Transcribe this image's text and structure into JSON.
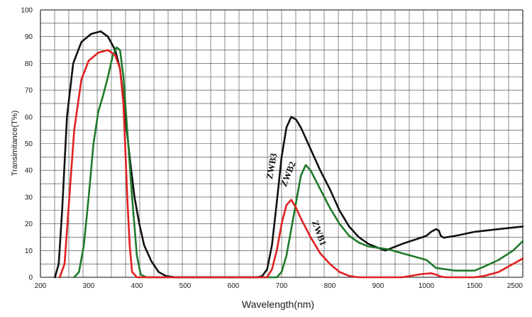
{
  "chart_data": {
    "type": "line",
    "xlabel": "Wavelength(nm)",
    "ylabel": "Transimitance(T%)",
    "ylim": [
      0,
      100
    ],
    "y_ticks": [
      "0",
      "10",
      "20",
      "30",
      "40",
      "50",
      "60",
      "70",
      "80",
      "90",
      "100"
    ],
    "x_ticks": [
      {
        "label": "200",
        "x": 200
      },
      {
        "label": "300",
        "x": 300
      },
      {
        "label": "400",
        "x": 400
      },
      {
        "label": "500",
        "x": 500
      },
      {
        "label": "600",
        "x": 600
      },
      {
        "label": "700",
        "x": 700
      },
      {
        "label": "800",
        "x": 800
      },
      {
        "label": "900",
        "x": 900
      },
      {
        "label": "1000",
        "x": 1000
      },
      {
        "label": "1500",
        "x": 1500
      },
      {
        "label": "2500",
        "x": 2500
      }
    ],
    "x_scale": "piecewise",
    "x_scale_breaks": [
      200,
      900,
      1000,
      1500,
      2500
    ],
    "grid": true,
    "series": [
      {
        "name": "ZWB3",
        "color": "#111111",
        "points": [
          [
            230,
            0
          ],
          [
            238,
            5
          ],
          [
            245,
            25
          ],
          [
            255,
            60
          ],
          [
            268,
            80
          ],
          [
            285,
            88
          ],
          [
            305,
            91
          ],
          [
            325,
            92
          ],
          [
            340,
            90
          ],
          [
            355,
            85
          ],
          [
            365,
            78
          ],
          [
            375,
            62
          ],
          [
            385,
            45
          ],
          [
            395,
            30
          ],
          [
            405,
            20
          ],
          [
            415,
            12
          ],
          [
            430,
            6
          ],
          [
            445,
            2
          ],
          [
            460,
            0.5
          ],
          [
            480,
            0
          ],
          [
            650,
            0
          ],
          [
            660,
            0.5
          ],
          [
            670,
            3
          ],
          [
            680,
            12
          ],
          [
            690,
            28
          ],
          [
            700,
            45
          ],
          [
            710,
            56
          ],
          [
            720,
            60
          ],
          [
            730,
            59
          ],
          [
            740,
            56
          ],
          [
            760,
            48
          ],
          [
            780,
            40
          ],
          [
            800,
            33
          ],
          [
            820,
            25
          ],
          [
            840,
            19
          ],
          [
            860,
            15
          ],
          [
            880,
            12.5
          ],
          [
            900,
            11
          ],
          [
            915,
            10
          ],
          [
            950,
            12.5
          ],
          [
            1000,
            15.5
          ],
          [
            1050,
            17
          ],
          [
            1100,
            18
          ],
          [
            1130,
            17.5
          ],
          [
            1150,
            15.5
          ],
          [
            1180,
            14.8
          ],
          [
            1300,
            15.5
          ],
          [
            1500,
            17
          ],
          [
            2000,
            18
          ],
          [
            2500,
            19
          ]
        ]
      },
      {
        "name": "ZWB2",
        "color": "#1f7a2a",
        "points": [
          [
            270,
            0
          ],
          [
            280,
            2
          ],
          [
            290,
            12
          ],
          [
            300,
            30
          ],
          [
            310,
            50
          ],
          [
            320,
            62
          ],
          [
            330,
            68
          ],
          [
            340,
            75
          ],
          [
            350,
            83
          ],
          [
            358,
            86
          ],
          [
            365,
            85
          ],
          [
            372,
            75
          ],
          [
            380,
            55
          ],
          [
            390,
            30
          ],
          [
            400,
            8
          ],
          [
            408,
            1
          ],
          [
            420,
            0
          ],
          [
            690,
            0
          ],
          [
            700,
            2
          ],
          [
            710,
            8
          ],
          [
            720,
            18
          ],
          [
            730,
            28
          ],
          [
            740,
            38
          ],
          [
            750,
            42
          ],
          [
            760,
            40
          ],
          [
            780,
            33
          ],
          [
            800,
            26
          ],
          [
            820,
            20
          ],
          [
            840,
            15.5
          ],
          [
            860,
            13
          ],
          [
            880,
            11.5
          ],
          [
            900,
            11
          ],
          [
            920,
            10.5
          ],
          [
            950,
            9
          ],
          [
            1000,
            6.5
          ],
          [
            1100,
            3.5
          ],
          [
            1300,
            2.5
          ],
          [
            1500,
            2.5
          ],
          [
            1700,
            4
          ],
          [
            2000,
            6.5
          ],
          [
            2300,
            10
          ],
          [
            2500,
            13.5
          ]
        ]
      },
      {
        "name": "ZWB1",
        "color": "#e02020",
        "points": [
          [
            240,
            0
          ],
          [
            250,
            5
          ],
          [
            260,
            30
          ],
          [
            270,
            55
          ],
          [
            285,
            74
          ],
          [
            300,
            81
          ],
          [
            320,
            84
          ],
          [
            340,
            85
          ],
          [
            355,
            83
          ],
          [
            365,
            78
          ],
          [
            372,
            65
          ],
          [
            380,
            30
          ],
          [
            385,
            12
          ],
          [
            390,
            2
          ],
          [
            400,
            0
          ],
          [
            670,
            0
          ],
          [
            680,
            3
          ],
          [
            690,
            10
          ],
          [
            700,
            20
          ],
          [
            710,
            27
          ],
          [
            720,
            29
          ],
          [
            730,
            26
          ],
          [
            740,
            22
          ],
          [
            760,
            15
          ],
          [
            780,
            9
          ],
          [
            800,
            5
          ],
          [
            820,
            2
          ],
          [
            840,
            0.5
          ],
          [
            860,
            0
          ],
          [
            900,
            0
          ],
          [
            950,
            0
          ],
          [
            990,
            1.2
          ],
          [
            1050,
            1.5
          ],
          [
            1100,
            1
          ],
          [
            1150,
            0.3
          ],
          [
            1200,
            0
          ],
          [
            1500,
            0
          ],
          [
            1700,
            0.5
          ],
          [
            2000,
            2
          ],
          [
            2500,
            7
          ]
        ]
      }
    ]
  }
}
